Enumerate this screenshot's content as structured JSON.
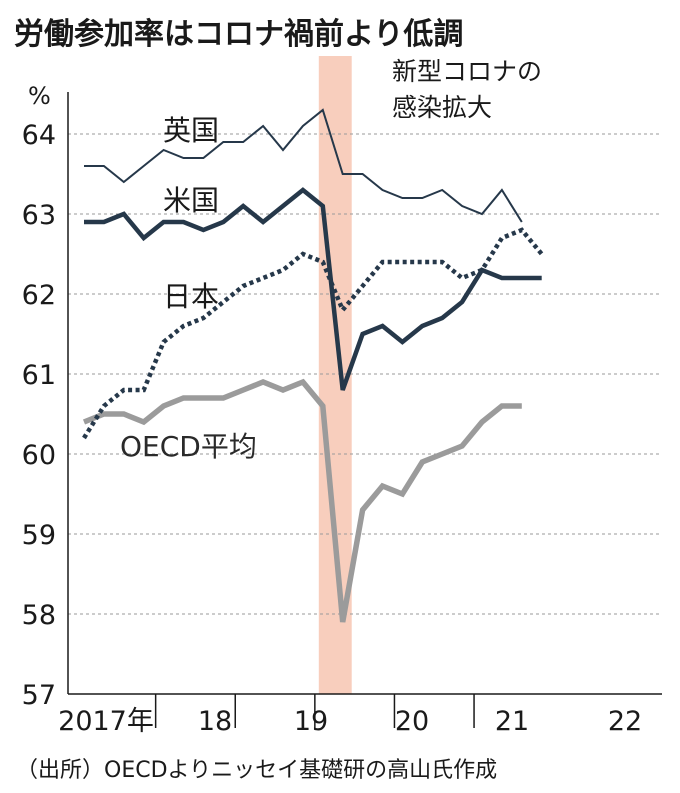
{
  "chart_data": {
    "type": "line",
    "title": "労働参加率はコロナ禍前より低調",
    "ylabel": "%",
    "ylim": [
      57,
      64.4
    ],
    "yticks": [
      "57",
      "58",
      "59",
      "60",
      "61",
      "62",
      "63",
      "64"
    ],
    "xticks": [
      "2017年",
      "18",
      "19",
      "20",
      "21",
      "22"
    ],
    "quarters": [
      "2017Q1",
      "2017Q2",
      "2017Q3",
      "2017Q4",
      "2018Q1",
      "2018Q2",
      "2018Q3",
      "2018Q4",
      "2019Q1",
      "2019Q2",
      "2019Q3",
      "2019Q4",
      "2020Q1",
      "2020Q2",
      "2020Q3",
      "2020Q4",
      "2021Q1",
      "2021Q2",
      "2021Q3",
      "2021Q4",
      "2022Q1",
      "2022Q2",
      "2022Q3",
      "2022Q4"
    ],
    "series": [
      {
        "name": "英国",
        "style": "thin",
        "color": "#26384a",
        "values": [
          63.6,
          63.6,
          63.4,
          63.6,
          63.8,
          63.7,
          63.7,
          63.9,
          63.9,
          64.1,
          63.8,
          64.1,
          64.3,
          63.5,
          63.5,
          63.3,
          63.2,
          63.2,
          63.3,
          63.1,
          63.0,
          63.3,
          62.9,
          null
        ]
      },
      {
        "name": "米国",
        "style": "thick",
        "color": "#26384a",
        "values": [
          62.9,
          62.9,
          63.0,
          62.7,
          62.9,
          62.9,
          62.8,
          62.9,
          63.1,
          62.9,
          63.1,
          63.3,
          63.1,
          60.8,
          61.5,
          61.6,
          61.4,
          61.6,
          61.7,
          61.9,
          62.3,
          62.2,
          62.2,
          62.2
        ]
      },
      {
        "name": "日本",
        "style": "dotted",
        "color": "#26384a",
        "values": [
          60.2,
          60.6,
          60.8,
          60.8,
          61.4,
          61.6,
          61.7,
          61.9,
          62.1,
          62.2,
          62.3,
          62.5,
          62.4,
          61.8,
          62.1,
          62.4,
          62.4,
          62.4,
          62.4,
          62.2,
          62.3,
          62.7,
          62.8,
          62.5
        ]
      },
      {
        "name": "OECD平均",
        "style": "thick-gray",
        "color": "#9b9b9b",
        "values": [
          60.4,
          60.5,
          60.5,
          60.4,
          60.6,
          60.7,
          60.7,
          60.7,
          60.8,
          60.9,
          60.8,
          60.9,
          60.6,
          57.9,
          59.3,
          59.6,
          59.5,
          59.9,
          60.0,
          60.1,
          60.4,
          60.6,
          60.6,
          null
        ]
      }
    ],
    "annotations": [
      {
        "text": "新型コロナの",
        "line": 1
      },
      {
        "text": "感染拡大",
        "line": 2
      }
    ],
    "shaded_region": {
      "from": "2020Q1",
      "to": "2020Q2",
      "color": "#f7c6b2"
    },
    "grid": true,
    "source": "（出所）OECDよりニッセイ基礎研の高山氏作成"
  }
}
